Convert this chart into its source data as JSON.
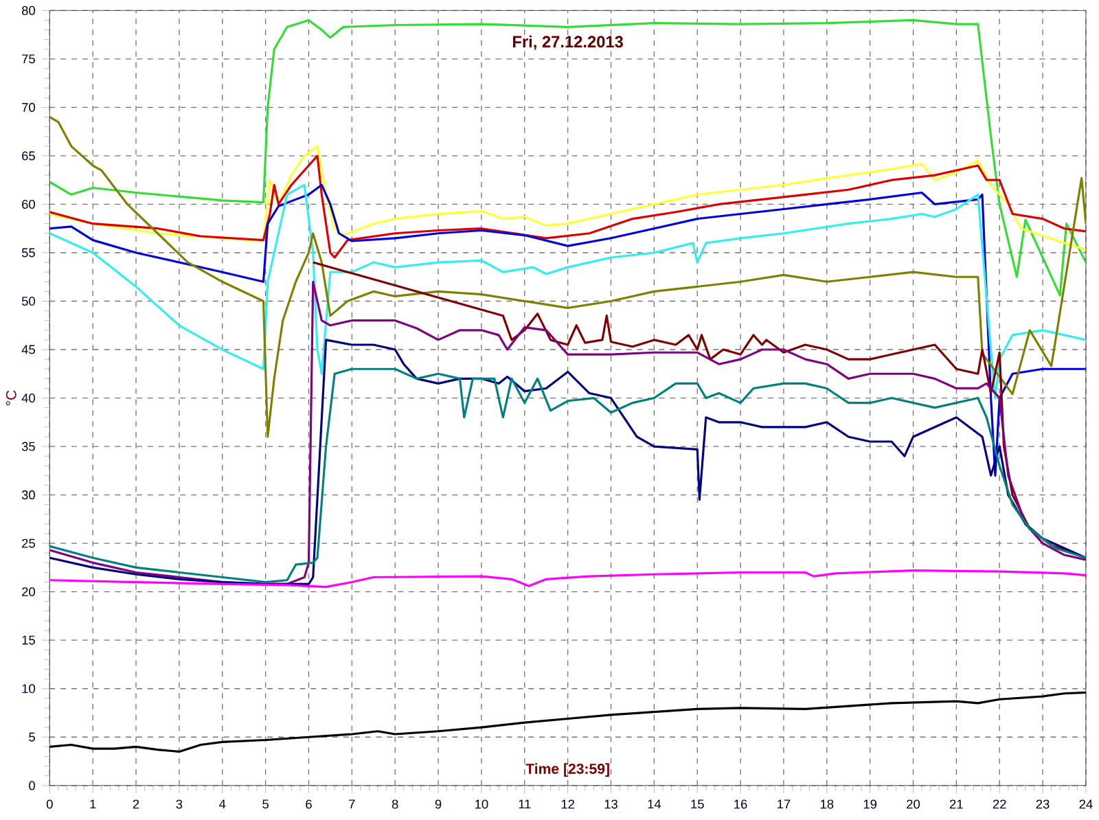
{
  "chart_data": {
    "type": "line",
    "title": "Fri, 27.12.2013",
    "xlabel": "Time [23:59]",
    "ylabel": "°C",
    "xlim": [
      0,
      24
    ],
    "ylim": [
      0,
      80
    ],
    "xticks": [
      0,
      1,
      2,
      3,
      4,
      5,
      6,
      7,
      8,
      9,
      10,
      11,
      12,
      13,
      14,
      15,
      16,
      17,
      18,
      19,
      20,
      21,
      22,
      23,
      24
    ],
    "yticks": [
      0,
      5,
      10,
      15,
      20,
      25,
      30,
      35,
      40,
      45,
      50,
      55,
      60,
      65,
      70,
      75,
      80
    ],
    "grid": true,
    "series": [
      {
        "color": "#33dd33",
        "x": [
          0,
          0.5,
          1,
          2,
          3,
          4,
          4.95,
          5.05,
          5.2,
          5.5,
          6,
          6.3,
          6.5,
          6.8,
          8,
          10,
          12,
          14,
          16,
          18,
          20,
          21,
          21.5,
          21.8,
          22,
          22.4,
          22.6,
          23.4,
          23.55,
          24
        ],
        "values": [
          62.3,
          61,
          61.7,
          61.2,
          60.8,
          60.4,
          60.2,
          70,
          76,
          78.3,
          79,
          78,
          77.2,
          78.3,
          78.5,
          78.6,
          78.3,
          78.7,
          78.6,
          78.7,
          79,
          78.6,
          78.6,
          67,
          60,
          52.5,
          58.4,
          50.6,
          58,
          54
        ]
      },
      {
        "color": "#ffff33",
        "x": [
          0,
          1,
          2.5,
          4,
          4.95,
          5.1,
          5.3,
          5.6,
          5.9,
          6.2,
          6.4,
          6.6,
          6.8,
          7.5,
          8,
          9,
          10,
          10.5,
          11,
          11.5,
          12,
          13,
          14,
          15,
          16,
          17,
          18,
          19,
          20,
          20.2,
          20.5,
          21,
          21.5,
          21.8,
          22.2,
          22.5,
          23.5,
          24
        ],
        "values": [
          59,
          58,
          57,
          56.5,
          56.2,
          62.5,
          60,
          63,
          65,
          66,
          61,
          57.5,
          56.8,
          58,
          58.5,
          59,
          59.3,
          58.5,
          58.7,
          57.8,
          58,
          59,
          60,
          61,
          61.5,
          62,
          62.7,
          63.3,
          64,
          64.2,
          62.5,
          63.3,
          64.5,
          62,
          60,
          57.5,
          56,
          55.3
        ]
      },
      {
        "color": "#dd0000",
        "x": [
          0,
          1,
          2.5,
          3.5,
          4.95,
          5.1,
          5.2,
          5.3,
          5.6,
          5.9,
          6.2,
          6.3,
          6.5,
          6.6,
          6.9,
          8,
          9,
          10,
          11.5,
          12.5,
          13.5,
          14.5,
          15.5,
          16.5,
          17.5,
          18.5,
          19.5,
          20.5,
          21.5,
          21.7,
          22,
          22.3,
          23,
          23.5,
          24
        ],
        "values": [
          59.2,
          58,
          57.5,
          56.7,
          56.3,
          59,
          62,
          60,
          62,
          63.5,
          65,
          61,
          55,
          54.5,
          56.3,
          57,
          57.3,
          57.5,
          56.5,
          57,
          58.5,
          59.2,
          60,
          60.5,
          61,
          61.5,
          62.5,
          63,
          64,
          62.5,
          62.5,
          59,
          58.5,
          57.5,
          57.2
        ]
      },
      {
        "color": "#0000dd",
        "x": [
          0,
          0.5,
          1,
          2,
          3,
          4,
          4.95,
          5.05,
          5.3,
          5.7,
          6,
          6.3,
          6.5,
          6.7,
          7,
          8,
          9,
          10,
          11,
          12,
          13,
          14,
          15,
          16,
          17,
          18,
          19,
          20.2,
          20.5,
          21.5,
          21.6,
          21.8,
          21.9,
          22,
          22.3,
          23,
          24
        ],
        "values": [
          57.5,
          57.7,
          56.3,
          55,
          54,
          53,
          52,
          58,
          59.8,
          60.5,
          61,
          62,
          60,
          57,
          56.2,
          56.5,
          57,
          57.3,
          56.8,
          55.7,
          56.5,
          57.5,
          58.5,
          59,
          59.5,
          60,
          60.5,
          61.2,
          60,
          60.5,
          61,
          40,
          32,
          40,
          42.5,
          43,
          43
        ]
      },
      {
        "color": "#33eeee",
        "x": [
          0,
          1,
          2,
          3,
          4,
          4.95,
          5.05,
          5.3,
          5.5,
          5.9,
          6.1,
          6.2,
          6.3,
          6.5,
          7,
          7.5,
          8,
          9,
          10,
          10.5,
          11.2,
          11.5,
          12,
          13,
          14,
          14.9,
          15,
          15.2,
          16,
          17,
          18.5,
          19.5,
          20.2,
          20.5,
          21,
          21.5,
          21.8,
          21.9,
          22,
          22.3,
          23,
          24
        ],
        "values": [
          57,
          55,
          51.5,
          47.5,
          45,
          43,
          52,
          57,
          61,
          62,
          55,
          45,
          42.5,
          53,
          53,
          54,
          53.5,
          54,
          54.2,
          53,
          53.5,
          52.8,
          53.5,
          54.5,
          55,
          56,
          54,
          56,
          56.5,
          57,
          58,
          58.5,
          59,
          58.7,
          59.5,
          61,
          45,
          40,
          44,
          46.5,
          47,
          46
        ]
      },
      {
        "color": "#808000",
        "x": [
          0,
          0.2,
          0.5,
          1,
          1.2,
          1.8,
          2.5,
          3.2,
          4,
          4.95,
          5.05,
          5.2,
          5.4,
          5.7,
          6,
          6.1,
          6.3,
          6.5,
          6.9,
          7.5,
          8,
          9,
          10,
          11,
          12,
          13,
          14,
          15,
          16,
          17,
          18,
          19,
          20,
          21,
          21.5,
          21.6,
          22.3,
          22.7,
          23.2,
          23.9,
          24
        ],
        "values": [
          69,
          68.5,
          66,
          64,
          63.5,
          60,
          57,
          54,
          52,
          50,
          36,
          42,
          48,
          52,
          55,
          57,
          54,
          48.5,
          50,
          51,
          50.5,
          51,
          50.7,
          50,
          49.3,
          50,
          51,
          51.5,
          52,
          52.7,
          52,
          52.5,
          53,
          52.5,
          52.5,
          44.6,
          40.4,
          47,
          43.3,
          62.7,
          58
        ]
      },
      {
        "color": "#800000",
        "x": [
          6.1,
          10.5,
          10.7,
          11,
          11.3,
          11.6,
          12,
          12.2,
          12.4,
          12.8,
          12.9,
          13,
          13.5,
          14,
          14.5,
          14.8,
          15,
          15.1,
          15.3,
          15.6,
          16,
          16.3,
          16.5,
          16.6,
          17,
          17.5,
          18,
          18.5,
          19,
          19.5,
          20,
          20.5,
          21,
          21.5,
          21.6,
          21.8,
          22,
          22.1,
          22.3,
          22.7,
          23.2,
          24
        ],
        "values": [
          54,
          48.5,
          46,
          47,
          48.7,
          46,
          45.5,
          47.5,
          45.7,
          46,
          48.5,
          45.8,
          45.3,
          46,
          45.5,
          46.5,
          45,
          46.5,
          44,
          45,
          44.5,
          46.5,
          45.5,
          46,
          44.7,
          45.5,
          45,
          44,
          44,
          44.5,
          45,
          45.5,
          43,
          42.5,
          45,
          40.5,
          44.7,
          35,
          30,
          26.5,
          24.8,
          23.5
        ]
      },
      {
        "color": "#800080",
        "x": [
          0,
          1,
          2,
          3,
          4,
          5,
          5.5,
          5.9,
          6,
          6.1,
          6.3,
          6.5,
          7,
          8,
          8.5,
          9,
          9.5,
          10,
          10.4,
          10.6,
          11,
          11.5,
          12,
          13,
          14,
          15,
          15.5,
          16,
          16.5,
          17,
          17.5,
          18,
          18.5,
          19,
          20,
          20.5,
          21,
          21.5,
          21.7,
          22,
          22.2,
          22.6,
          23,
          23.5,
          24
        ],
        "values": [
          24.3,
          23,
          22,
          21.5,
          21,
          20.8,
          20.8,
          21.5,
          23,
          52,
          48,
          47.5,
          48,
          48,
          47.2,
          46,
          47,
          47,
          46.5,
          45,
          47.3,
          47,
          44.5,
          44.5,
          44.7,
          44.7,
          43.5,
          44,
          45,
          45,
          44,
          43.5,
          42,
          42.5,
          42.5,
          42,
          41,
          41,
          41.5,
          40,
          32,
          27,
          25,
          23.8,
          23.3
        ]
      },
      {
        "color": "#000080",
        "x": [
          0,
          1,
          2,
          3,
          4,
          5,
          6,
          6.1,
          6.4,
          7,
          7.5,
          8,
          8.2,
          8.5,
          9,
          9.5,
          10,
          10.4,
          10.6,
          11,
          11.5,
          12,
          12.5,
          13,
          13.3,
          13.6,
          14,
          15,
          15.05,
          15.2,
          15.5,
          16,
          16.5,
          17.5,
          18,
          18.5,
          19,
          19.5,
          19.8,
          20,
          20.5,
          21,
          21.3,
          21.6,
          21.8,
          22,
          22.2,
          22.6,
          23,
          23.5,
          24
        ],
        "values": [
          23.5,
          22.5,
          21.8,
          21.3,
          21,
          20.8,
          20.8,
          21.5,
          46,
          45.5,
          45.5,
          45,
          43.5,
          42,
          41.5,
          42,
          42,
          41.5,
          42.2,
          40.7,
          41,
          42.7,
          40.5,
          40,
          38,
          36,
          35,
          34.7,
          29.5,
          38,
          37.5,
          37.5,
          37,
          37,
          37.5,
          36,
          35.5,
          35.5,
          34,
          36,
          37,
          38,
          37,
          36,
          32,
          35,
          30,
          27,
          25.5,
          24.5,
          23.5
        ]
      },
      {
        "color": "#008080",
        "x": [
          0,
          1,
          2,
          3,
          4,
          5,
          5.5,
          5.7,
          6.1,
          6.2,
          6.4,
          6.6,
          7,
          8,
          8.5,
          9,
          9.5,
          9.6,
          9.8,
          10.3,
          10.5,
          10.7,
          11,
          11.3,
          11.6,
          12,
          12.6,
          13,
          13.5,
          14,
          14.5,
          15,
          15.2,
          15.5,
          16,
          16.3,
          17,
          17.5,
          18,
          18.5,
          19,
          19.5,
          20.5,
          21.5,
          21.7,
          22,
          22.3,
          22.7,
          23.3,
          24
        ],
        "values": [
          24.7,
          23.5,
          22.5,
          22,
          21.5,
          21,
          21.2,
          22.8,
          23,
          23.5,
          35,
          42.5,
          43,
          43,
          42,
          42.5,
          42,
          38,
          42,
          42,
          38,
          42,
          39.5,
          42,
          38.7,
          39.7,
          40,
          38.5,
          39.5,
          40,
          41.5,
          41.5,
          40,
          40.5,
          39.5,
          41,
          41.5,
          41.5,
          41,
          39.5,
          39.5,
          40,
          39,
          40,
          38,
          33,
          29,
          26.5,
          24.5,
          23.5
        ]
      },
      {
        "color": "#ff00ff",
        "x": [
          0,
          2,
          4,
          5.5,
          6.4,
          7,
          7.5,
          10,
          10.7,
          11.1,
          11.5,
          12.5,
          14,
          16,
          17.5,
          17.7,
          18.2,
          20,
          22,
          23.5,
          24
        ],
        "values": [
          21.2,
          21,
          20.8,
          20.7,
          20.5,
          21,
          21.5,
          21.6,
          21.3,
          20.6,
          21.3,
          21.6,
          21.8,
          22,
          22,
          21.6,
          21.9,
          22.2,
          22.1,
          21.9,
          21.7
        ]
      },
      {
        "color": "#000000",
        "x": [
          0,
          0.5,
          1,
          1.5,
          2,
          2.5,
          3,
          3.5,
          4,
          5,
          6,
          7,
          7.6,
          8,
          9,
          10,
          11,
          12,
          13,
          14,
          15,
          16,
          17.5,
          18.5,
          19.5,
          21,
          21.5,
          22,
          23,
          23.5,
          24
        ],
        "values": [
          4,
          4.2,
          3.8,
          3.8,
          4,
          3.7,
          3.5,
          4.2,
          4.5,
          4.7,
          5,
          5.3,
          5.6,
          5.3,
          5.6,
          6,
          6.5,
          6.9,
          7.3,
          7.6,
          7.9,
          8,
          7.9,
          8.2,
          8.5,
          8.7,
          8.5,
          8.9,
          9.2,
          9.5,
          9.6
        ]
      }
    ]
  }
}
